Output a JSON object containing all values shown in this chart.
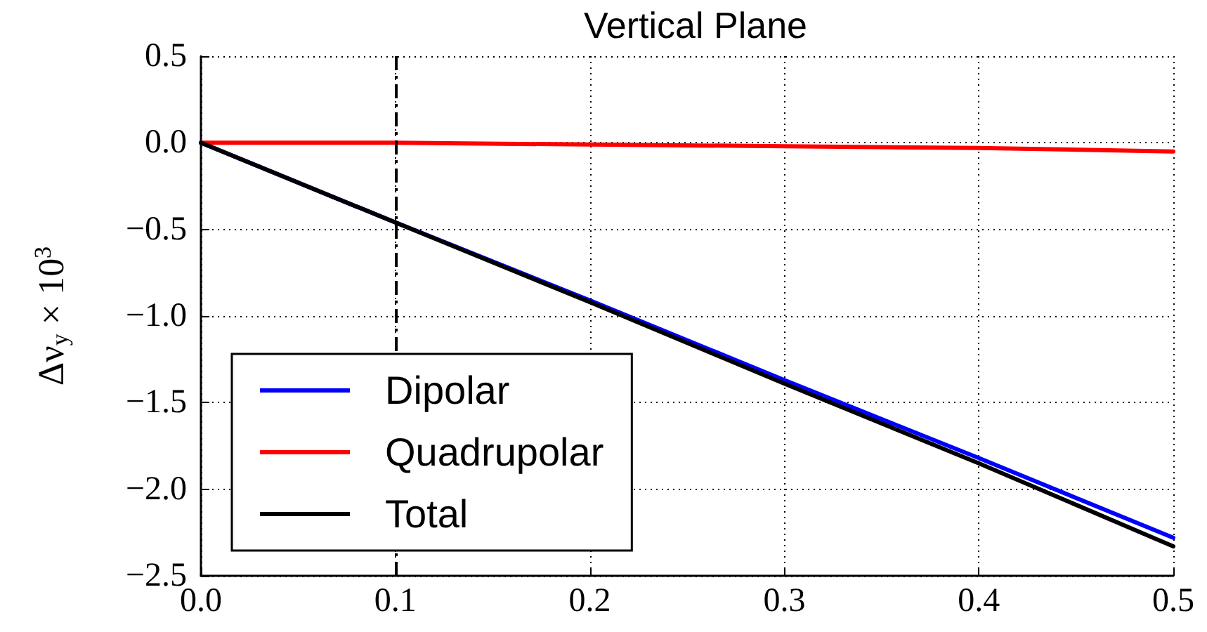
{
  "chart_data": {
    "type": "line",
    "title": "Vertical Plane",
    "ylabel": "Δν$_{y}$ × 10$^{3}$",
    "x": [
      0,
      0.1,
      0.2,
      0.3,
      0.4,
      0.5
    ],
    "series": [
      {
        "name": "Dipolar",
        "color": "#0000ff",
        "values": [
          0,
          -0.46,
          -0.91,
          -1.37,
          -1.82,
          -2.28
        ]
      },
      {
        "name": "Quadrupolar",
        "color": "#ff0000",
        "values": [
          0,
          0,
          -0.01,
          -0.02,
          -0.03,
          -0.05
        ]
      },
      {
        "name": "Total",
        "color": "#000000",
        "values": [
          0,
          -0.46,
          -0.92,
          -1.39,
          -1.85,
          -2.33
        ]
      }
    ],
    "xlim": [
      0,
      0.5
    ],
    "xticks": [
      {
        "value": 0,
        "label": "0.0"
      },
      0.1,
      0.2,
      0.3,
      0.4,
      0.5
    ],
    "ylim": [
      -2.5,
      0.5
    ],
    "yticks": [
      {
        "value": -2.5,
        "label": "−2.5"
      },
      {
        "value": -2,
        "label": "−2.0"
      },
      {
        "value": -1.5,
        "label": "−1.5"
      },
      {
        "value": -1,
        "label": "−1.0"
      },
      {
        "value": -0.5,
        "label": "−0.5"
      },
      {
        "value": 0,
        "label": "0.0"
      },
      0.5
    ],
    "ref_lines": [
      {
        "axis": "x",
        "value": 0.1,
        "color": "#000000",
        "line_style": "dashdot"
      }
    ],
    "grid": true,
    "legend": "bottom left",
    "marker": "none",
    "line_style": "solid"
  }
}
